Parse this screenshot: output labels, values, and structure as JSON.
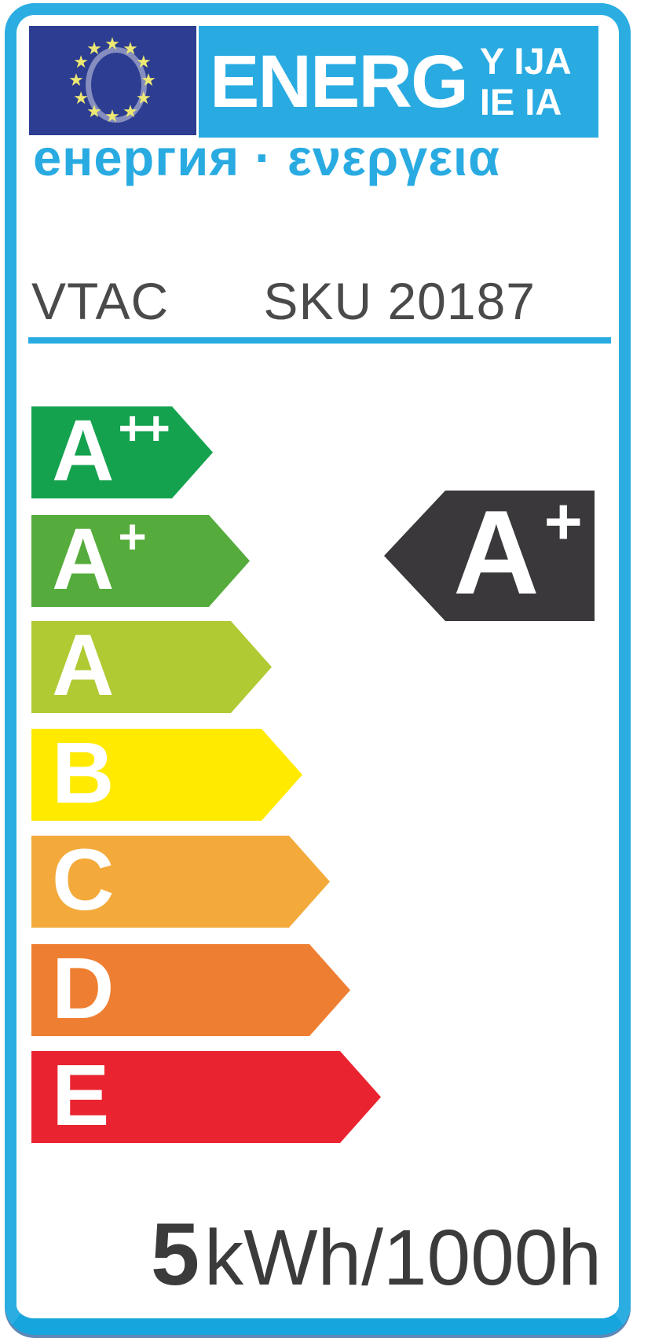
{
  "label": {
    "header": {
      "energ_text": "ENERG",
      "suffix_line1": "Y IJA",
      "suffix_line2": "IE IA",
      "subtitle": "енергия · ενεργεια",
      "accent_color": "#29ABE2",
      "flag": {
        "background_color": "#2D3D91",
        "star_glyph": "★",
        "star_count": 12,
        "star_color": "#EDE873"
      }
    },
    "product": {
      "brand": "VTAC",
      "sku": "SKU 20187"
    },
    "ratings": {
      "rows": [
        {
          "grade": "A",
          "sup": "++",
          "color": "#14A24E"
        },
        {
          "grade": "A",
          "sup": "+",
          "color": "#55AC3C"
        },
        {
          "grade": "A",
          "sup": "",
          "color": "#B0CA33"
        },
        {
          "grade": "B",
          "sup": "",
          "color": "#FFEA00"
        },
        {
          "grade": "C",
          "sup": "",
          "color": "#F3AA3B"
        },
        {
          "grade": "D",
          "sup": "",
          "color": "#EE7F32"
        },
        {
          "grade": "E",
          "sup": "",
          "color": "#E92430"
        }
      ],
      "selected": {
        "grade": "A",
        "sup": "+",
        "color": "#3A383A"
      }
    },
    "consumption": {
      "value": "5",
      "unit": "kWh/1000h"
    },
    "frame_color": "#2BADE2",
    "frame_bottom_color": "#17A5DE",
    "text_color": "#4A4A4A"
  }
}
